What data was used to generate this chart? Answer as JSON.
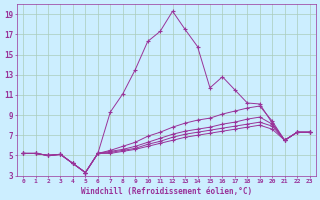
{
  "xlabel": "Windchill (Refroidissement éolien,°C)",
  "ylabel": "",
  "bg_color": "#cceeff",
  "grid_color": "#aaccbb",
  "line_color": "#993399",
  "xlim": [
    -0.5,
    23.5
  ],
  "ylim": [
    3,
    20
  ],
  "yticks": [
    3,
    5,
    7,
    9,
    11,
    13,
    15,
    17,
    19
  ],
  "xticks": [
    0,
    1,
    2,
    3,
    4,
    5,
    6,
    7,
    8,
    9,
    10,
    11,
    12,
    13,
    14,
    15,
    16,
    17,
    18,
    19,
    20,
    21,
    22,
    23
  ],
  "series": [
    [
      5.2,
      5.2,
      5.0,
      5.1,
      4.2,
      3.3,
      5.2,
      9.3,
      11.1,
      13.5,
      16.3,
      17.3,
      19.3,
      17.5,
      15.8,
      11.7,
      12.8,
      11.5,
      10.2,
      10.1,
      8.2,
      6.5,
      7.3,
      7.3
    ],
    [
      5.2,
      5.2,
      5.0,
      5.1,
      4.2,
      3.3,
      5.2,
      5.5,
      5.9,
      6.3,
      6.9,
      7.3,
      7.8,
      8.2,
      8.5,
      8.7,
      9.1,
      9.4,
      9.7,
      9.9,
      8.4,
      6.5,
      7.3,
      7.3
    ],
    [
      5.2,
      5.2,
      5.0,
      5.1,
      4.2,
      3.3,
      5.2,
      5.4,
      5.6,
      5.9,
      6.3,
      6.7,
      7.1,
      7.4,
      7.6,
      7.8,
      8.1,
      8.3,
      8.6,
      8.8,
      8.1,
      6.5,
      7.3,
      7.3
    ],
    [
      5.2,
      5.2,
      5.0,
      5.1,
      4.2,
      3.3,
      5.2,
      5.3,
      5.5,
      5.7,
      6.1,
      6.4,
      6.8,
      7.1,
      7.3,
      7.5,
      7.7,
      7.9,
      8.1,
      8.3,
      7.9,
      6.5,
      7.3,
      7.3
    ],
    [
      5.2,
      5.2,
      5.0,
      5.1,
      4.2,
      3.3,
      5.2,
      5.2,
      5.4,
      5.6,
      5.9,
      6.2,
      6.5,
      6.8,
      7.0,
      7.2,
      7.4,
      7.6,
      7.8,
      8.0,
      7.6,
      6.5,
      7.3,
      7.3
    ]
  ]
}
